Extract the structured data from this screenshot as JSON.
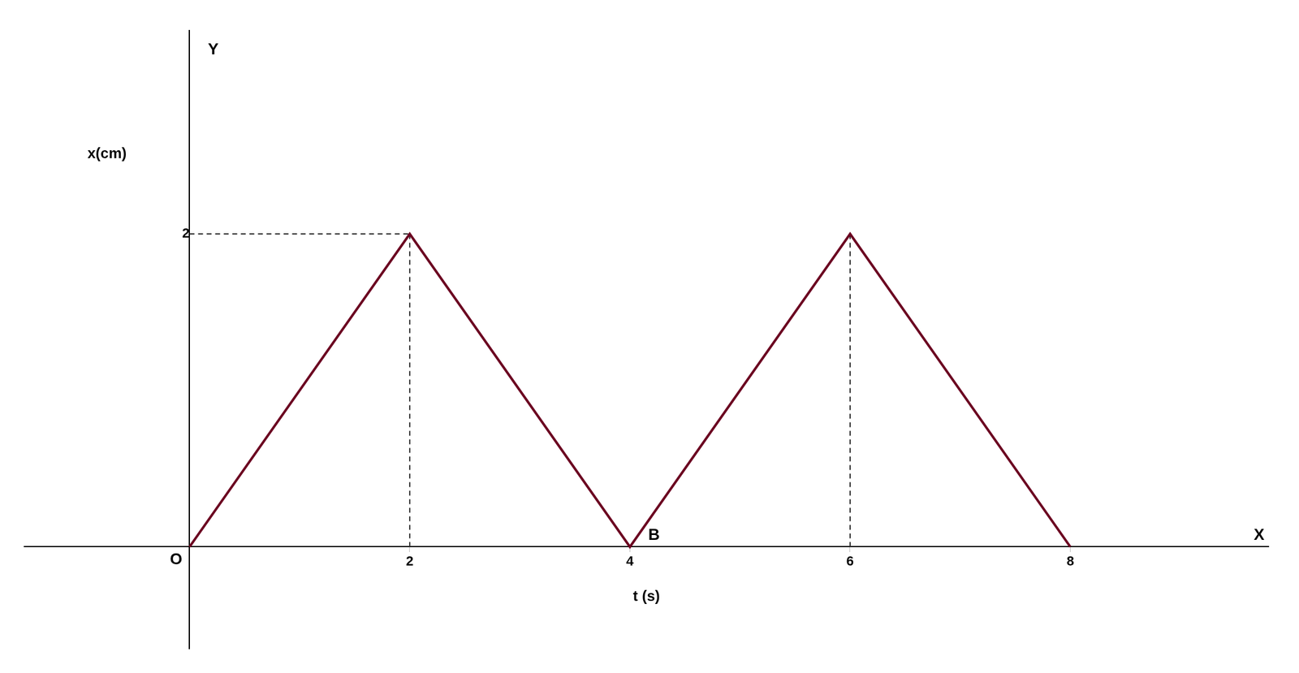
{
  "chart_data": {
    "type": "line",
    "x": [
      0,
      2,
      4,
      6,
      8
    ],
    "values": [
      0,
      2,
      0,
      2,
      0
    ],
    "color": "#6B0020",
    "marker": "none",
    "xlim": [
      -1.5,
      9.8
    ],
    "ylim": [
      -0.65,
      3.3
    ],
    "xticks": [
      2,
      4,
      6,
      8
    ],
    "yticks": [
      2
    ],
    "xlabel": "t (s)",
    "ylabel": "x(cm)",
    "grid": false,
    "legend": false,
    "guides": {
      "color": "#333333",
      "line_style": "dashed",
      "lines": [
        {
          "x": [
            2,
            2
          ],
          "y": [
            0,
            2
          ]
        },
        {
          "x": [
            6,
            6
          ],
          "y": [
            0,
            2
          ]
        },
        {
          "x": [
            0,
            2
          ],
          "y": [
            2,
            2
          ]
        }
      ]
    },
    "annotations": [
      {
        "text": "X",
        "x": 9.5,
        "y": 0
      },
      {
        "text": "Y",
        "x": 0,
        "y": 3.1
      },
      {
        "text": "O",
        "x": 0,
        "y": 0
      },
      {
        "text": "B",
        "x": 4,
        "y": 0
      }
    ]
  }
}
